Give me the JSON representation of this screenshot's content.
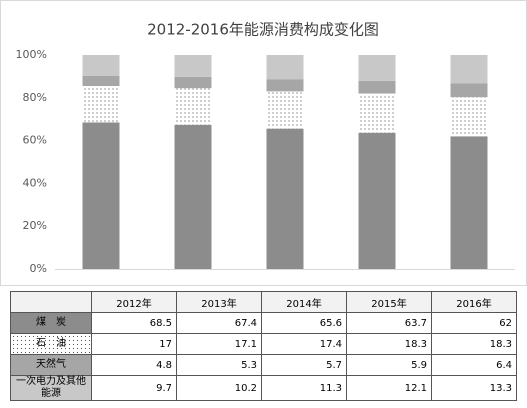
{
  "chart_data": {
    "type": "stacked_bar",
    "title": "2012-2016年能源消费构成变化图",
    "categories": [
      "2012年",
      "2013年",
      "2014年",
      "2015年",
      "2016年"
    ],
    "series": [
      {
        "name": "煤　炭",
        "color": "#8c8c8c",
        "values": [
          68.5,
          67.4,
          65.6,
          63.7,
          62.0
        ]
      },
      {
        "name": "石　油",
        "color": "#ffffff",
        "pattern": "dots",
        "values": [
          17.0,
          17.1,
          17.4,
          18.3,
          18.3
        ]
      },
      {
        "name": "天然气",
        "color": "#a6a6a6",
        "values": [
          4.8,
          5.3,
          5.7,
          5.9,
          6.4
        ]
      },
      {
        "name": "一次电力及其他能源",
        "color": "#c8c8c8",
        "values": [
          9.7,
          10.2,
          11.3,
          12.1,
          13.3
        ]
      }
    ],
    "ylim": [
      0,
      100
    ],
    "yticks": [
      {
        "value": 0,
        "label": "0%"
      },
      {
        "value": 20,
        "label": "20%"
      },
      {
        "value": 40,
        "label": "40%"
      },
      {
        "value": 60,
        "label": "60%"
      },
      {
        "value": 80,
        "label": "80%"
      },
      {
        "value": 100,
        "label": "100%"
      }
    ],
    "grid": false
  }
}
